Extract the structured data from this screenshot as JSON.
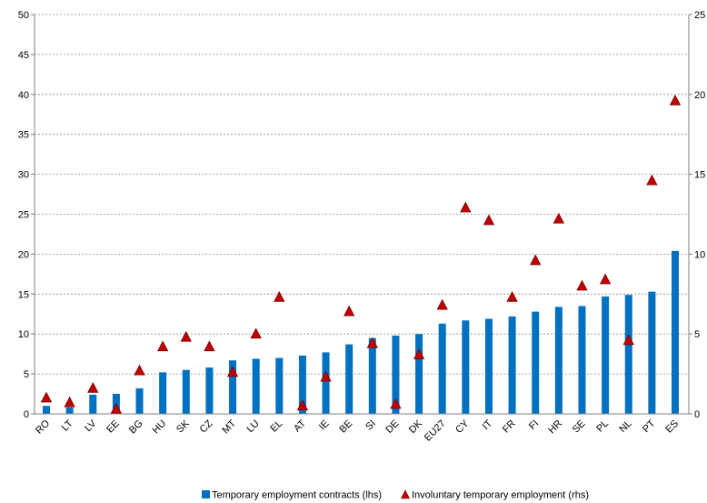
{
  "chart_data": {
    "type": "bar",
    "categories": [
      "RO",
      "LT",
      "LV",
      "EE",
      "BG",
      "HU",
      "SK",
      "CZ",
      "MT",
      "LU",
      "EL",
      "AT",
      "IE",
      "BE",
      "SI",
      "DE",
      "DK",
      "EU27",
      "CY",
      "IT",
      "FR",
      "FI",
      "HR",
      "SE",
      "PL",
      "NL",
      "PT",
      "ES"
    ],
    "series": [
      {
        "name": "Temporary employment contracts (lhs)",
        "type": "bar",
        "axis": "left",
        "color": "#0070C0",
        "values": [
          1.0,
          0.8,
          2.4,
          2.5,
          3.2,
          5.2,
          5.5,
          5.8,
          6.7,
          6.9,
          7.0,
          7.3,
          7.7,
          8.7,
          9.5,
          9.8,
          10.0,
          11.3,
          11.7,
          11.9,
          12.2,
          12.8,
          13.4,
          13.5,
          14.7,
          14.9,
          15.3,
          20.4
        ]
      },
      {
        "name": "Involuntary temporary employment (rhs)",
        "type": "scatter",
        "marker": "triangle",
        "axis": "right",
        "color": "#C00000",
        "values": [
          1.0,
          0.7,
          1.6,
          0.3,
          2.7,
          4.2,
          4.8,
          4.2,
          2.6,
          5.0,
          7.3,
          0.5,
          2.3,
          6.4,
          4.4,
          0.6,
          3.7,
          6.8,
          12.9,
          12.1,
          7.3,
          9.6,
          12.2,
          8.0,
          8.4,
          4.6,
          14.6,
          19.6
        ]
      }
    ],
    "y_left": {
      "min": 0,
      "max": 50,
      "ticks": [
        0,
        5,
        10,
        15,
        20,
        25,
        30,
        35,
        40,
        45,
        50
      ]
    },
    "y_right": {
      "min": 0,
      "max": 25,
      "ticks": [
        0,
        5,
        10,
        15,
        20,
        25
      ]
    },
    "grid": true,
    "legend_position": "bottom"
  }
}
